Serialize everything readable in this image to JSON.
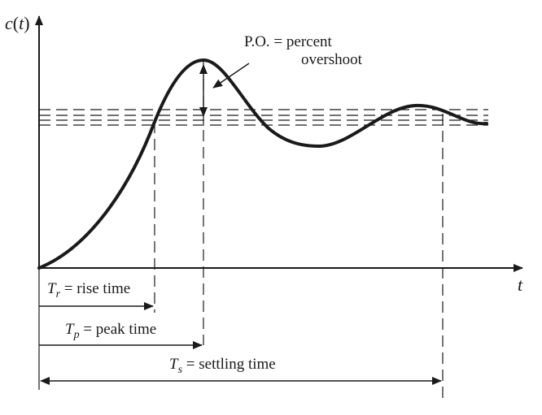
{
  "axes": {
    "y_label": {
      "main": "c",
      "paren_open": "(",
      "var": "t",
      "paren_close": ")"
    },
    "x_label": "t"
  },
  "annotations": {
    "percent_overshoot": {
      "line1": "P.O. = percent",
      "line2": "overshoot"
    },
    "rise_time": {
      "symbol": "T",
      "subscript": "r",
      "text": " = rise time"
    },
    "peak_time": {
      "symbol": "T",
      "subscript": "p",
      "text": " = peak time"
    },
    "settling_time": {
      "symbol": "T",
      "subscript": "s",
      "text": " = settling time"
    }
  },
  "colors": {
    "ink": "#1a1a1a",
    "background": "#ffffff"
  }
}
